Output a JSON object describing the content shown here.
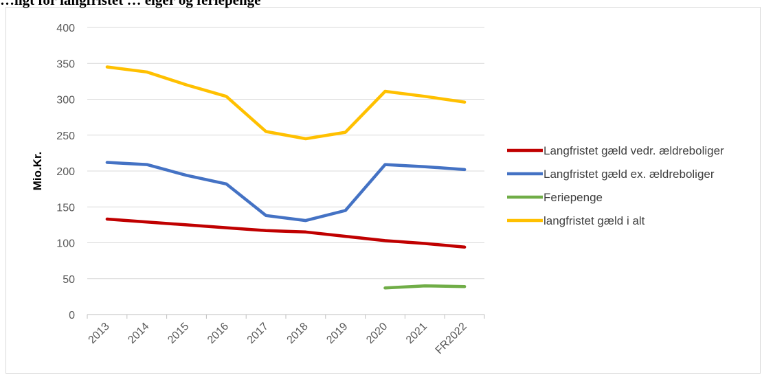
{
  "chart_data": {
    "type": "line",
    "title": "…ligt for langfristet  … eiger og feriepenge",
    "ylabel": "Mio.Kr.",
    "xlabel": "",
    "ylim": [
      0,
      400
    ],
    "y_ticks": [
      0,
      50,
      100,
      150,
      200,
      250,
      300,
      350,
      400
    ],
    "categories": [
      "2013",
      "2014",
      "2015",
      "2016",
      "2017",
      "2018",
      "2019",
      "2020",
      "2021",
      "FR2022"
    ],
    "grid": true,
    "legend_position": "right",
    "series": [
      {
        "name": "Langfristet gæld vedr. ældreboliger",
        "color": "#c00000",
        "values": [
          133,
          129,
          125,
          121,
          117,
          115,
          109,
          103,
          99,
          94
        ]
      },
      {
        "name": "Langfristet gæld ex. ældreboliger",
        "color": "#4472c4",
        "values": [
          212,
          209,
          194,
          182,
          138,
          131,
          145,
          209,
          206,
          202
        ]
      },
      {
        "name": "Feriepenge",
        "color": "#70ad47",
        "values": [
          null,
          null,
          null,
          null,
          null,
          null,
          null,
          37,
          40,
          39
        ]
      },
      {
        "name": "langfristet gæld i alt",
        "color": "#ffc000",
        "values": [
          345,
          338,
          320,
          304,
          255,
          245,
          254,
          311,
          304,
          296
        ]
      }
    ]
  }
}
